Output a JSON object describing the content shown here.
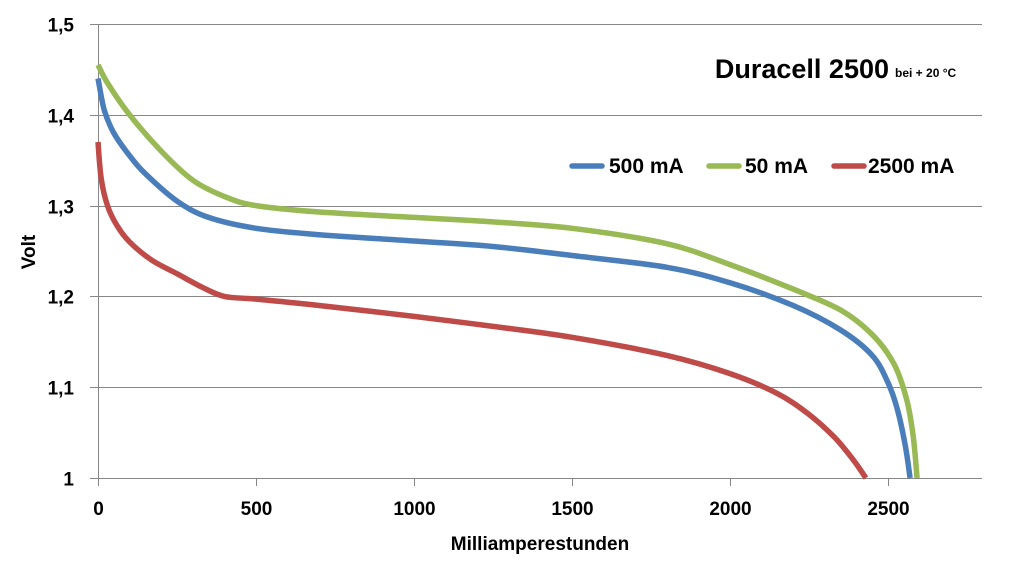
{
  "chart_data": {
    "type": "line",
    "title": "Duracell 2500",
    "subtitle": "bei + 20 °C",
    "xlabel": "Milliamperestunden",
    "ylabel": "Volt",
    "xlim": [
      0,
      2800
    ],
    "ylim": [
      1.0,
      1.5
    ],
    "x_ticks": [
      0,
      500,
      1000,
      1500,
      2000,
      2500
    ],
    "x_tick_labels": [
      "0",
      "500",
      "1000",
      "1500",
      "2000",
      "2500"
    ],
    "y_ticks": [
      1.0,
      1.1,
      1.2,
      1.3,
      1.4,
      1.5
    ],
    "y_tick_labels": [
      "1",
      "1,1",
      "1,2",
      "1,3",
      "1,4",
      "1,5"
    ],
    "grid": "horizontal",
    "legend_position": "top-right",
    "series": [
      {
        "name": "500 mA",
        "color": "#4a7ebb",
        "x": [
          0,
          20,
          50,
          100,
          150,
          250,
          350,
          500,
          700,
          1000,
          1250,
          1500,
          1800,
          2000,
          2200,
          2350,
          2450,
          2500,
          2530,
          2555,
          2570
        ],
        "y": [
          1.44,
          1.405,
          1.38,
          1.355,
          1.335,
          1.305,
          1.287,
          1.275,
          1.268,
          1.261,
          1.255,
          1.245,
          1.232,
          1.215,
          1.19,
          1.163,
          1.135,
          1.105,
          1.075,
          1.035,
          1.0
        ]
      },
      {
        "name": "50 mA",
        "color": "#98b954",
        "x": [
          0,
          30,
          100,
          200,
          300,
          400,
          500,
          700,
          1000,
          1250,
          1500,
          1800,
          2000,
          2200,
          2350,
          2450,
          2520,
          2560,
          2580,
          2592
        ],
        "y": [
          1.455,
          1.435,
          1.4,
          1.36,
          1.328,
          1.31,
          1.3,
          1.293,
          1.287,
          1.282,
          1.275,
          1.258,
          1.235,
          1.208,
          1.185,
          1.158,
          1.125,
          1.085,
          1.045,
          1.0
        ]
      },
      {
        "name": "2500 mA",
        "color": "#be4b48",
        "x": [
          0,
          10,
          30,
          60,
          100,
          170,
          250,
          330,
          400,
          500,
          700,
          1000,
          1250,
          1500,
          1800,
          2000,
          2150,
          2250,
          2330,
          2390,
          2430
        ],
        "y": [
          1.37,
          1.33,
          1.3,
          1.278,
          1.26,
          1.24,
          1.225,
          1.21,
          1.2,
          1.197,
          1.19,
          1.178,
          1.167,
          1.155,
          1.135,
          1.115,
          1.093,
          1.07,
          1.045,
          1.02,
          1.0
        ]
      }
    ]
  }
}
